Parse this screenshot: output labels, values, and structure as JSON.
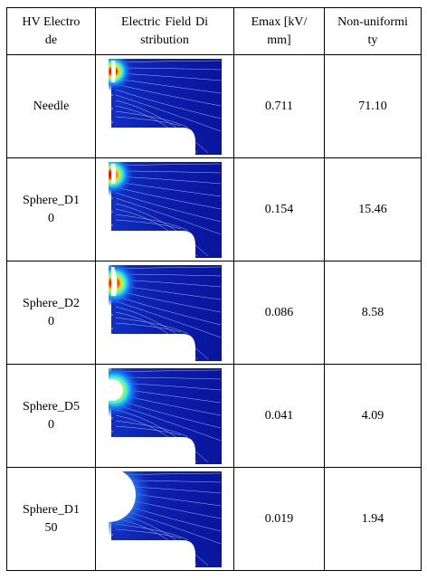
{
  "header": [
    "HV Electrode",
    "Electric Field Distribution",
    "Emax [kV/mm]",
    "Non-uniformity"
  ],
  "rows": [
    {
      "electrode": "Needle",
      "emax": "0.711",
      "non_uniformity": "71.10"
    },
    {
      "electrode": "Sphere_D10",
      "emax": "0.154",
      "non_uniformity": "15.46"
    },
    {
      "electrode": "Sphere_D20",
      "emax": "0.086",
      "non_uniformity": "8.58"
    },
    {
      "electrode": "Sphere_D50",
      "emax": "0.041",
      "non_uniformity": "4.09"
    },
    {
      "electrode": "Sphere_D150",
      "emax": "0.019",
      "non_uniformity": "1.94"
    }
  ]
}
